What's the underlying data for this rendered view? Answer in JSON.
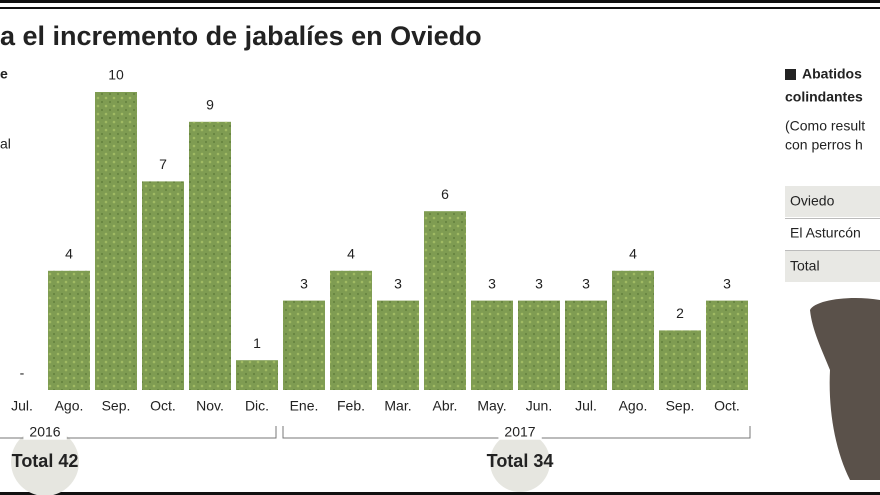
{
  "chart_data": {
    "type": "bar",
    "title": "a el incremento de jabalíes en Oviedo",
    "categories": [
      "Jul.",
      "Ago.",
      "Sep.",
      "Oct.",
      "Nov.",
      "Dic.",
      "Ene.",
      "Feb.",
      "Mar.",
      "Abr.",
      "May.",
      "Jun.",
      "Jul.",
      "Ago.",
      "Sep.",
      "Oct."
    ],
    "values": [
      0,
      4,
      10,
      7,
      9,
      1,
      3,
      4,
      3,
      6,
      3,
      3,
      3,
      4,
      2,
      3
    ],
    "value_labels": [
      "-",
      "4",
      "10",
      "7",
      "9",
      "1",
      "3",
      "4",
      "3",
      "6",
      "3",
      "3",
      "3",
      "4",
      "2",
      "3"
    ],
    "color": "#7f9c52",
    "ylim": [
      0,
      10
    ],
    "groups": [
      {
        "label": "2016",
        "total": "Total 42"
      },
      {
        "label": "2017",
        "total": "Total 34"
      }
    ]
  },
  "left_panel": [
    "e",
    "al"
  ],
  "side_panel": {
    "heading": [
      "Abatidos",
      "colindantes"
    ],
    "note": [
      "(Como result",
      "con perros h"
    ],
    "rows": [
      "Oviedo",
      "El Asturcón",
      "Total"
    ]
  }
}
